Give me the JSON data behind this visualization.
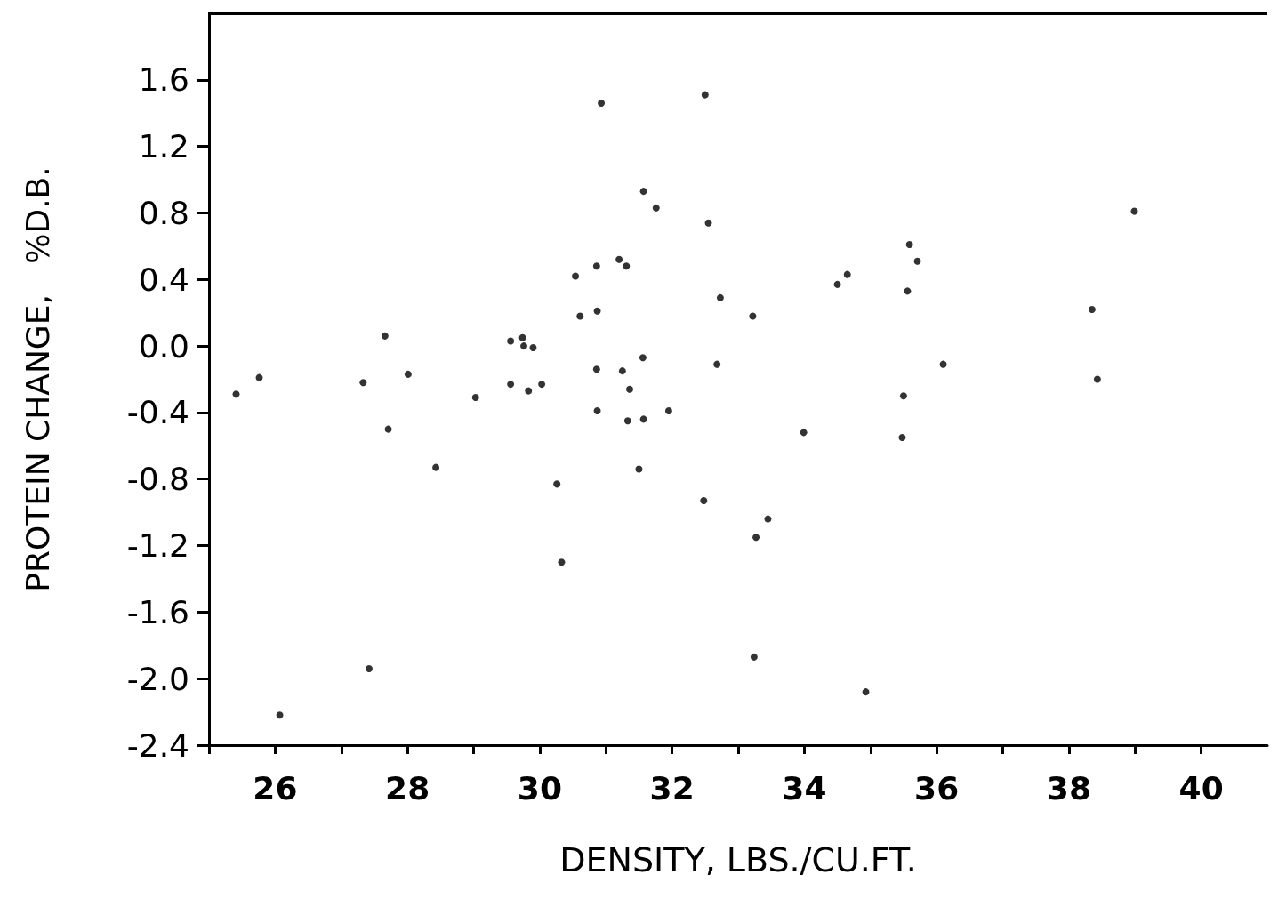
{
  "chart_data": {
    "type": "scatter",
    "xlabel": "DENSITY, LBS./CU.FT.",
    "ylabel": "PROTEIN CHANGE,   %D.B.",
    "xlim": [
      25,
      41
    ],
    "ylim": [
      -2.4,
      2.0
    ],
    "xticks": [
      {
        "value": 25,
        "label": null
      },
      26,
      {
        "value": 27,
        "label": null
      },
      28,
      {
        "value": 29,
        "label": null
      },
      30,
      {
        "value": 31,
        "label": null
      },
      32,
      {
        "value": 33,
        "label": null
      },
      34,
      {
        "value": 35,
        "label": null
      },
      36,
      {
        "value": 37,
        "label": null
      },
      38,
      {
        "value": 39,
        "label": null
      },
      40
    ],
    "yticks": [
      -2.4,
      {
        "value": -2,
        "label": "-2.0"
      },
      -1.6,
      -1.2,
      -0.8,
      -0.4,
      {
        "value": 0,
        "label": "0.0"
      },
      0.4,
      0.8,
      1.2,
      1.6
    ],
    "grid": false,
    "marker": "circle",
    "color": "#000000",
    "x": [
      25.41,
      25.76,
      26.07,
      27.33,
      27.42,
      27.66,
      27.71,
      28.01,
      28.43,
      29.03,
      29.56,
      29.56,
      29.74,
      29.76,
      29.83,
      29.9,
      30.03,
      30.26,
      30.33,
      30.54,
      30.61,
      30.86,
      30.87,
      30.86,
      30.87,
      30.93,
      31.2,
      31.31,
      31.25,
      31.36,
      31.33,
      31.57,
      31.56,
      31.57,
      31.5,
      31.76,
      31.95,
      32.48,
      32.5,
      32.55,
      32.68,
      32.73,
      33.22,
      33.27,
      33.45,
      33.24,
      33.99,
      34.5,
      34.65,
      34.93,
      35.48,
      35.5,
      35.56,
      35.59,
      35.71,
      36.1,
      38.35,
      38.43,
      38.99
    ],
    "values": [
      -0.29,
      -0.19,
      -2.22,
      -0.22,
      -1.94,
      0.06,
      -0.5,
      -0.17,
      -0.73,
      -0.31,
      0.03,
      -0.23,
      0.05,
      0.0,
      -0.27,
      -0.01,
      -0.23,
      -0.83,
      -1.3,
      0.42,
      0.18,
      0.48,
      0.21,
      -0.14,
      -0.39,
      1.46,
      0.52,
      0.48,
      -0.15,
      -0.26,
      -0.45,
      0.93,
      -0.07,
      -0.44,
      -0.74,
      0.83,
      -0.39,
      -0.93,
      1.51,
      0.74,
      -0.11,
      0.29,
      0.18,
      -1.15,
      -1.04,
      -1.87,
      -0.52,
      0.37,
      0.43,
      -2.08,
      -0.55,
      -0.3,
      0.33,
      0.61,
      0.51,
      -0.11,
      0.22,
      -0.2,
      0.81
    ]
  }
}
